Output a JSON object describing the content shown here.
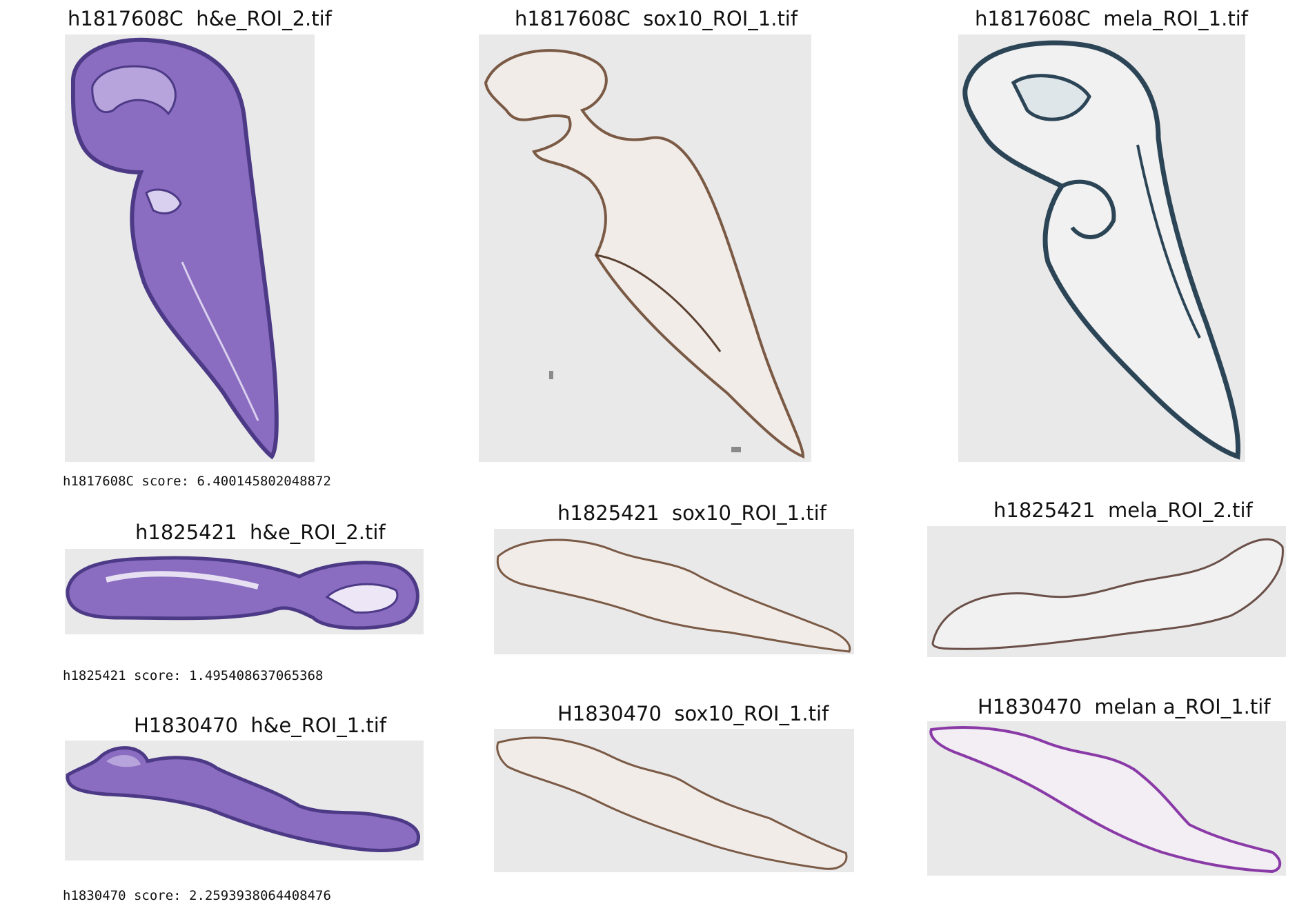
{
  "rows": [
    {
      "panels": [
        {
          "title": "h1817608C  h&e_ROI_2.tif",
          "stain": "h&e"
        },
        {
          "title": "h1817608C  sox10_ROI_1.tif",
          "stain": "sox10"
        },
        {
          "title": "h1817608C  mela_ROI_1.tif",
          "stain": "mela"
        }
      ],
      "score": "h1817608C score: 6.400145802048872"
    },
    {
      "panels": [
        {
          "title": "h1825421  h&e_ROI_2.tif",
          "stain": "h&e"
        },
        {
          "title": "h1825421  sox10_ROI_1.tif",
          "stain": "sox10"
        },
        {
          "title": "h1825421  mela_ROI_2.tif",
          "stain": "mela"
        }
      ],
      "score": "h1825421 score: 1.495408637065368"
    },
    {
      "panels": [
        {
          "title": "H1830470  h&e_ROI_1.tif",
          "stain": "h&e"
        },
        {
          "title": "H1830470  sox10_ROI_1.tif",
          "stain": "sox10"
        },
        {
          "title": "H1830470  melan a_ROI_1.tif",
          "stain": "melan a"
        }
      ],
      "score": "h1830470 score: 2.2593938064408476"
    }
  ],
  "colors": {
    "background": "#ffffff",
    "image_bg": "#e9e9ea",
    "he_fill": "#8a6cc0",
    "he_edge": "#4d3a86",
    "sox10_fill": "#f2ece8",
    "sox10_edge": "#7a5a45",
    "mela_fill": "#f1f1f2",
    "mela_edge": "#2c4556",
    "melana_fill": "#f2eef4",
    "melana_edge": "#8a3aa6"
  }
}
